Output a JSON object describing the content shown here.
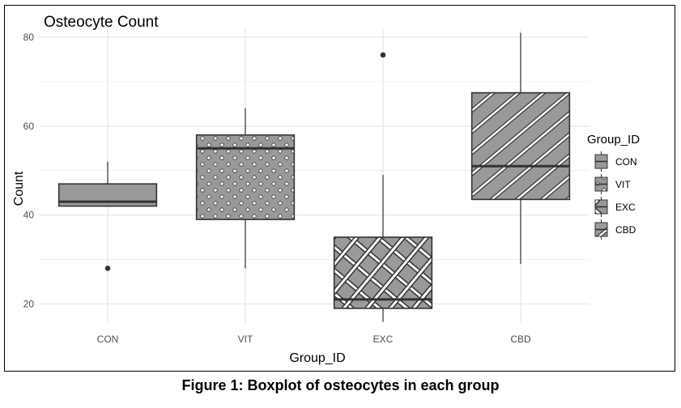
{
  "caption": "Figure 1: Boxplot of osteocytes in each group",
  "chart_data": {
    "type": "boxplot",
    "title": "Osteocyte Count",
    "xlabel": "Group_ID",
    "ylabel": "Count",
    "ylim": [
      15.7,
      82
    ],
    "yticks": [
      20,
      40,
      60,
      80
    ],
    "categories": [
      "CON",
      "VIT",
      "EXC",
      "CBD"
    ],
    "grid": true,
    "legend": {
      "title": "Group_ID",
      "position": "right",
      "entries": [
        "CON",
        "VIT",
        "EXC",
        "CBD"
      ]
    },
    "colors": {
      "box_fill": "#999999",
      "outline": "#333333",
      "grid": "#ebebeb",
      "text": "#4d4d4d"
    },
    "boxes": [
      {
        "group": "CON",
        "pattern": "none",
        "whisker_low": 42,
        "q1": 42,
        "median": 43,
        "q3": 47,
        "whisker_high": 52,
        "outliers": [
          28
        ]
      },
      {
        "group": "VIT",
        "pattern": "dots",
        "whisker_low": 28,
        "q1": 39,
        "median": 55,
        "q3": 58,
        "whisker_high": 64,
        "outliers": []
      },
      {
        "group": "EXC",
        "pattern": "crosshatch",
        "whisker_low": 16,
        "q1": 19,
        "median": 21,
        "q3": 35,
        "whisker_high": 49,
        "outliers": [
          76
        ]
      },
      {
        "group": "CBD",
        "pattern": "diagonal-stripes",
        "whisker_low": 29,
        "q1": 43.5,
        "median": 51,
        "q3": 67.5,
        "whisker_high": 81,
        "outliers": []
      }
    ]
  }
}
